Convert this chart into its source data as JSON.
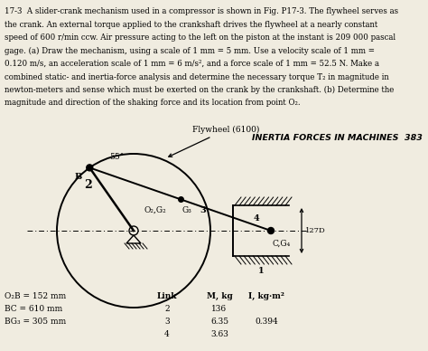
{
  "title_text": "INERTIA FORCES IN MACHINES  383",
  "problem_text": [
    "17-3  A slider-crank mechanism used in a compressor is shown in Fig. P17-3. The flywheel serves as",
    "the crank. An external torque applied to the crankshaft drives the flywheel at a nearly constant",
    "speed of 600 r/min ccw. Air pressure acting to the left on the piston at the instant is 209 000 pascal",
    "gage. (a) Draw the mechanism, using a scale of 1 mm = 5 mm. Use a velocity scale of 1 mm =",
    "0.120 m/s, an acceleration scale of 1 mm = 6 m/s², and a force scale of 1 mm = 52.5 N. Make a",
    "combined static- and inertia-force analysis and determine the necessary torque T₂ in magnitude in",
    "newton-meters and sense which must be exerted on the crank by the crankshaft. (b) Determine the",
    "magnitude and direction of the shaking force and its location from point O₂."
  ],
  "section_title": "INERTIA FORCES IN MACHINES  383",
  "flywheel_label": "Flywheel (6100)",
  "link2_label": "2",
  "O2G2_label": "O₂,G₂",
  "G3_label": "G₃",
  "link3_label": "3",
  "CG4_label": "C,G₄",
  "link4_label": "4",
  "link1_label": "1",
  "dim_label": "127D",
  "angle_label": "55°",
  "B_label": "B",
  "table_headers": [
    "Link",
    "M, kg",
    "I, kg·m²"
  ],
  "table_rows": [
    [
      "2",
      "136",
      ""
    ],
    [
      "3",
      "6.35",
      "0.394"
    ],
    [
      "4",
      "3.63",
      ""
    ]
  ],
  "dims_text": [
    "O₂B = 152 mm",
    "BC = 610 mm",
    "BG₃ = 305 mm"
  ],
  "background": "#f0ece0"
}
